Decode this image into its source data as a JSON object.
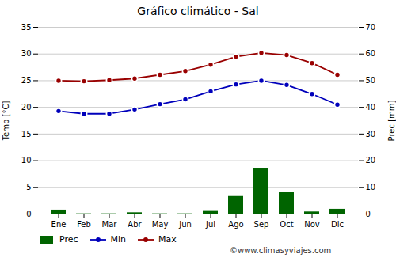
{
  "chart_data": {
    "type": "bar_line",
    "title": "Gráfico climático - Sal",
    "categories": [
      "Ene",
      "Feb",
      "Mar",
      "Abr",
      "May",
      "Jun",
      "Jul",
      "Ago",
      "Sep",
      "Oct",
      "Nov",
      "Dic"
    ],
    "ylabel": "Temp [°C]",
    "y2label": "Prec [mm]",
    "ylim": [
      0,
      35
    ],
    "yticks": [
      0,
      5,
      10,
      15,
      20,
      25,
      30,
      35
    ],
    "y2lim": [
      0,
      70
    ],
    "y2ticks": [
      0,
      10,
      20,
      30,
      40,
      50,
      60,
      70
    ],
    "grid": true,
    "legend": "bottom-left",
    "annotations": [
      "©www.climasyviajes.com"
    ],
    "series": [
      {
        "name": "Prec",
        "type": "bar",
        "axis": "y2",
        "color": "#006400",
        "values": [
          1.5,
          0.1,
          0.1,
          0.5,
          0.1,
          0.1,
          1.3,
          6.6,
          17.2,
          8.1,
          0.8,
          1.8
        ]
      },
      {
        "name": "Min",
        "type": "line",
        "marker": "circle",
        "color": "#0000bb",
        "values": [
          19.3,
          18.8,
          18.8,
          19.6,
          20.6,
          21.5,
          23.0,
          24.3,
          25.0,
          24.2,
          22.5,
          20.5
        ]
      },
      {
        "name": "Max",
        "type": "line",
        "marker": "circle",
        "color": "#990000",
        "values": [
          25.0,
          24.9,
          25.1,
          25.4,
          26.1,
          26.8,
          28.0,
          29.5,
          30.2,
          29.8,
          28.3,
          26.1
        ]
      }
    ]
  }
}
